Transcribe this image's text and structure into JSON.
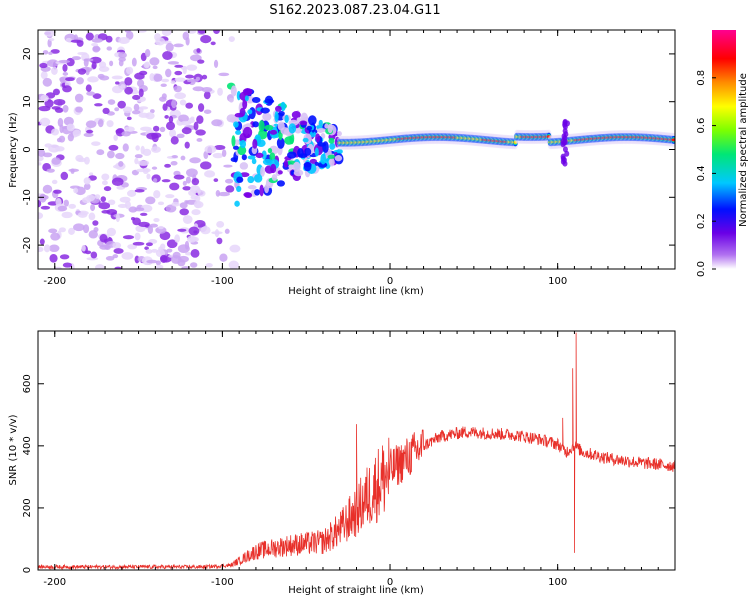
{
  "title": "S162.2023.087.23.04.G11",
  "colors": {
    "snr_line": "#e8302a",
    "axis": "#000000",
    "background": "#ffffff"
  },
  "chart_data": [
    {
      "type": "heatmap",
      "name": "spectrogram",
      "xlabel": "Height of straight line (km)",
      "ylabel": "Frequency (Hz)",
      "xlim": [
        -210,
        170
      ],
      "ylim": [
        -25,
        25
      ],
      "xticks": [
        -200,
        -100,
        0,
        100
      ],
      "yticks": [
        -20,
        -10,
        0,
        10,
        20
      ],
      "colorbar": {
        "label": "Normalized spectral amplitude",
        "range": [
          0,
          1
        ],
        "ticks": [
          "0.0",
          "0.2",
          "0.4",
          "0.6",
          "0.8"
        ],
        "colormap": [
          "#ffffff",
          "#7a00e6",
          "#0010ff",
          "#00c8ff",
          "#00e676",
          "#7cff00",
          "#ffff00",
          "#ff8c00",
          "#ff0000",
          "#ff0090"
        ]
      },
      "description_regions": {
        "noise_region_km": [
          -210,
          -95
        ],
        "transition_region_km": [
          -95,
          -30
        ],
        "signal_region_km": [
          -30,
          170
        ],
        "signal_frequency_hz": [
          1,
          3
        ]
      }
    },
    {
      "type": "line",
      "name": "snr",
      "xlabel": "Height of straight line (km)",
      "ylabel": "SNR (10 * v/v)",
      "xlim": [
        -210,
        170
      ],
      "ylim": [
        0,
        770
      ],
      "xticks": [
        -200,
        -100,
        0,
        100
      ],
      "yticks": [
        0,
        200,
        400,
        600
      ],
      "envelope": {
        "x": [
          -210,
          -150,
          -110,
          -95,
          -80,
          -60,
          -40,
          -30,
          -20,
          -10,
          0,
          10,
          20,
          30,
          45,
          60,
          75,
          90,
          100,
          105,
          110,
          115,
          130,
          150,
          170
        ],
        "y": [
          10,
          10,
          10,
          15,
          60,
          80,
          90,
          130,
          190,
          260,
          320,
          360,
          400,
          430,
          445,
          440,
          435,
          420,
          405,
          380,
          400,
          380,
          360,
          345,
          335
        ]
      },
      "spikes": [
        {
          "x": -20,
          "y": 470
        },
        {
          "x": 103,
          "y": 490
        },
        {
          "x": 109,
          "y": 650
        },
        {
          "x": 111,
          "y": 765
        },
        {
          "x": 110,
          "y": 55
        }
      ]
    }
  ]
}
